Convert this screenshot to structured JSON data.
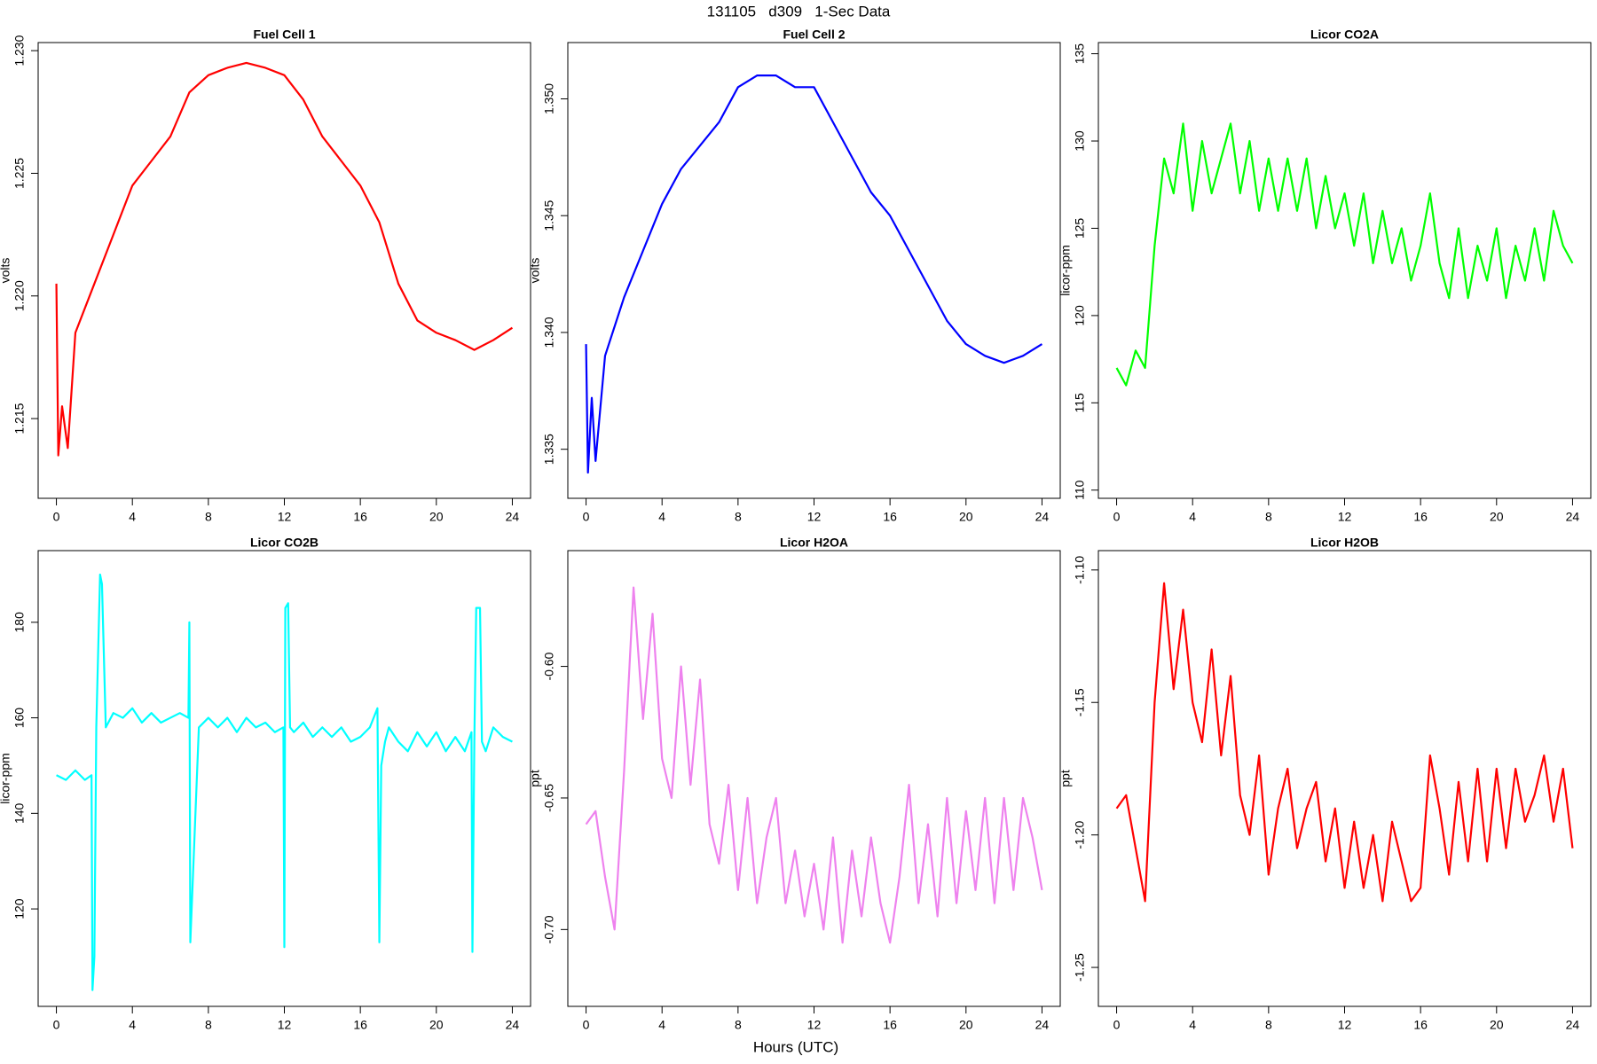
{
  "title": "131105   d309   1-Sec Data",
  "x_label": "Hours (UTC)",
  "chart_data": [
    {
      "type": "line",
      "title": "Fuel Cell 1",
      "y_label": "volts",
      "color": "#ff0000",
      "x": [
        0,
        0.1,
        0.3,
        0.6,
        1,
        2,
        3,
        4,
        5,
        6,
        7,
        8,
        9,
        10,
        11,
        12,
        13,
        14,
        15,
        16,
        17,
        18,
        19,
        20,
        21,
        22,
        23,
        24
      ],
      "values": [
        1.2205,
        1.2135,
        1.2155,
        1.2138,
        1.2185,
        1.2205,
        1.2225,
        1.2245,
        1.2255,
        1.2265,
        1.2283,
        1.229,
        1.2293,
        1.2295,
        1.2293,
        1.229,
        1.228,
        1.2265,
        1.2255,
        1.2245,
        1.223,
        1.2205,
        1.219,
        1.2185,
        1.2182,
        1.2178,
        1.2182,
        1.2187
      ],
      "xlim": [
        -0.96,
        24.96
      ],
      "xticks": [
        0,
        4,
        8,
        12,
        16,
        20,
        24
      ],
      "ylim": [
        1.21175,
        1.23033
      ],
      "yticks": [
        1.215,
        {
          "value": 1.22,
          "label": "1.220"
        },
        1.225,
        {
          "value": 1.23,
          "label": "1.230"
        }
      ]
    },
    {
      "type": "line",
      "title": "Fuel Cell 2",
      "y_label": "volts",
      "color": "#0000ff",
      "x": [
        0,
        0.1,
        0.3,
        0.5,
        1,
        2,
        3,
        4,
        5,
        6,
        7,
        8,
        9,
        10,
        11,
        12,
        13,
        14,
        15,
        16,
        17,
        18,
        19,
        20,
        21,
        22,
        23,
        24
      ],
      "values": [
        1.3395,
        1.334,
        1.3372,
        1.3345,
        1.339,
        1.3415,
        1.3435,
        1.3455,
        1.347,
        1.348,
        1.349,
        1.3505,
        1.351,
        1.351,
        1.3505,
        1.3505,
        1.349,
        1.3475,
        1.346,
        1.345,
        1.3435,
        1.342,
        1.3405,
        1.3395,
        1.339,
        1.3387,
        1.339,
        1.3395
      ],
      "xlim": [
        -0.96,
        24.96
      ],
      "xticks": [
        0,
        4,
        8,
        12,
        16,
        20,
        24
      ],
      "ylim": [
        1.3329,
        1.35241
      ],
      "yticks": [
        1.335,
        {
          "value": 1.34,
          "label": "1.340"
        },
        1.345,
        {
          "value": 1.35,
          "label": "1.350"
        }
      ]
    },
    {
      "type": "line",
      "title": "Licor CO2A",
      "y_label": "licor-ppm",
      "color": "#00ff00",
      "x": [
        0,
        0.5,
        1,
        1.5,
        2,
        2.5,
        3,
        3.5,
        4,
        4.5,
        5,
        5.5,
        6,
        6.5,
        7,
        7.5,
        8,
        8.5,
        9,
        9.5,
        10,
        10.5,
        11,
        11.5,
        12,
        12.5,
        13,
        13.5,
        14,
        14.5,
        15,
        15.5,
        16,
        16.5,
        17,
        17.5,
        18,
        18.5,
        19,
        19.5,
        20,
        20.5,
        21,
        21.5,
        22,
        22.5,
        23,
        23.5,
        24
      ],
      "values": [
        117,
        116,
        118,
        117,
        124,
        129,
        127,
        131,
        126,
        130,
        127,
        129,
        131,
        127,
        130,
        126,
        129,
        126,
        129,
        126,
        129,
        125,
        128,
        125,
        127,
        124,
        127,
        123,
        126,
        123,
        125,
        122,
        124,
        127,
        123,
        121,
        125,
        121,
        124,
        122,
        125,
        121,
        124,
        122,
        125,
        122,
        126,
        124,
        123
      ],
      "xlim": [
        -0.96,
        24.96
      ],
      "xticks": [
        0,
        4,
        8,
        12,
        16,
        20,
        24
      ],
      "ylim": [
        109.53,
        135.64
      ],
      "yticks": [
        110,
        115,
        120,
        125,
        130,
        135
      ]
    },
    {
      "type": "line",
      "title": "Licor CO2B",
      "y_label": "licor-ppm",
      "color": "#00ffff",
      "x": [
        0,
        0.5,
        1,
        1.5,
        1.85,
        1.9,
        2.0,
        2.1,
        2.3,
        2.4,
        2.6,
        3,
        3.5,
        4,
        4.5,
        5,
        5.5,
        6,
        6.5,
        6.95,
        7.0,
        7.05,
        7.5,
        8,
        8.5,
        9,
        9.5,
        10,
        10.5,
        11,
        11.5,
        11.95,
        12.0,
        12.05,
        12.2,
        12.3,
        12.5,
        13,
        13.5,
        14,
        14.5,
        15,
        15.5,
        16,
        16.5,
        16.9,
        17.0,
        17.1,
        17.3,
        17.5,
        18,
        18.5,
        19,
        19.5,
        20,
        20.5,
        21,
        21.5,
        21.85,
        21.9,
        22.0,
        22.1,
        22.3,
        22.4,
        22.6,
        23,
        23.5,
        24
      ],
      "values": [
        148,
        147,
        149,
        147,
        148,
        103,
        110,
        158,
        190,
        188,
        158,
        161,
        160,
        162,
        159,
        161,
        159,
        160,
        161,
        160,
        180,
        113,
        158,
        160,
        158,
        160,
        157,
        160,
        158,
        159,
        157,
        158,
        112,
        183,
        184,
        158,
        157,
        159,
        156,
        158,
        156,
        158,
        155,
        156,
        158,
        162,
        113,
        150,
        155,
        158,
        155,
        153,
        157,
        154,
        157,
        153,
        156,
        153,
        157,
        111,
        155,
        183,
        183,
        155,
        153,
        158,
        156,
        155
      ],
      "xlim": [
        -0.96,
        24.96
      ],
      "xticks": [
        0,
        4,
        8,
        12,
        16,
        20,
        24
      ],
      "ylim": [
        99.6,
        195.0
      ],
      "yticks": [
        120,
        140,
        160,
        180
      ]
    },
    {
      "type": "line",
      "title": "Licor H2OA",
      "y_label": "ppt",
      "color": "#ee82ee",
      "x": [
        0,
        0.5,
        1,
        1.5,
        2,
        2.5,
        3,
        3.5,
        4,
        4.5,
        5,
        5.5,
        6,
        6.5,
        7,
        7.5,
        8,
        8.5,
        9,
        9.5,
        10,
        10.5,
        11,
        11.5,
        12,
        12.5,
        13,
        13.5,
        14,
        14.5,
        15,
        15.5,
        16,
        16.5,
        17,
        17.5,
        18,
        18.5,
        19,
        19.5,
        20,
        20.5,
        21,
        21.5,
        22,
        22.5,
        23,
        23.5,
        24
      ],
      "values": [
        -0.66,
        -0.655,
        -0.68,
        -0.7,
        -0.64,
        -0.57,
        -0.62,
        -0.58,
        -0.635,
        -0.65,
        -0.6,
        -0.645,
        -0.605,
        -0.66,
        -0.675,
        -0.645,
        -0.685,
        -0.65,
        -0.69,
        -0.665,
        -0.65,
        -0.69,
        -0.67,
        -0.695,
        -0.675,
        -0.7,
        -0.665,
        -0.705,
        -0.67,
        -0.695,
        -0.665,
        -0.69,
        -0.705,
        -0.68,
        -0.645,
        -0.69,
        -0.66,
        -0.695,
        -0.65,
        -0.69,
        -0.655,
        -0.685,
        -0.65,
        -0.69,
        -0.65,
        -0.685,
        -0.65,
        -0.665,
        -0.685
      ],
      "xlim": [
        -0.96,
        24.96
      ],
      "xticks": [
        0,
        4,
        8,
        12,
        16,
        20,
        24
      ],
      "ylim": [
        -0.7292,
        -0.556
      ],
      "yticks": [
        {
          "value": -0.7,
          "label": "-0.70"
        },
        -0.65,
        {
          "value": -0.6,
          "label": "-0.60"
        }
      ]
    },
    {
      "type": "line",
      "title": "Licor H2OB",
      "y_label": "ppt",
      "color": "#ff0000",
      "x": [
        0,
        0.5,
        1,
        1.5,
        2,
        2.5,
        3,
        3.5,
        4,
        4.5,
        5,
        5.5,
        6,
        6.5,
        7,
        7.5,
        8,
        8.5,
        9,
        9.5,
        10,
        10.5,
        11,
        11.5,
        12,
        12.5,
        13,
        13.5,
        14,
        14.5,
        15,
        15.5,
        16,
        16.5,
        17,
        17.5,
        18,
        18.5,
        19,
        19.5,
        20,
        20.5,
        21,
        21.5,
        22,
        22.5,
        23,
        23.5,
        24
      ],
      "values": [
        -1.19,
        -1.185,
        -1.205,
        -1.225,
        -1.15,
        -1.105,
        -1.145,
        -1.115,
        -1.15,
        -1.165,
        -1.13,
        -1.17,
        -1.14,
        -1.185,
        -1.2,
        -1.17,
        -1.215,
        -1.19,
        -1.175,
        -1.205,
        -1.19,
        -1.18,
        -1.21,
        -1.19,
        -1.22,
        -1.195,
        -1.22,
        -1.2,
        -1.225,
        -1.195,
        -1.21,
        -1.225,
        -1.22,
        -1.17,
        -1.19,
        -1.215,
        -1.18,
        -1.21,
        -1.175,
        -1.21,
        -1.175,
        -1.205,
        -1.175,
        -1.195,
        -1.185,
        -1.17,
        -1.195,
        -1.175,
        -1.205
      ],
      "xlim": [
        -0.96,
        24.96
      ],
      "xticks": [
        0,
        4,
        8,
        12,
        16,
        20,
        24
      ],
      "ylim": [
        -1.2647,
        -1.0927
      ],
      "yticks": [
        -1.25,
        {
          "value": -1.2,
          "label": "-1.20"
        },
        -1.15,
        {
          "value": -1.1,
          "label": "-1.10"
        }
      ]
    }
  ]
}
